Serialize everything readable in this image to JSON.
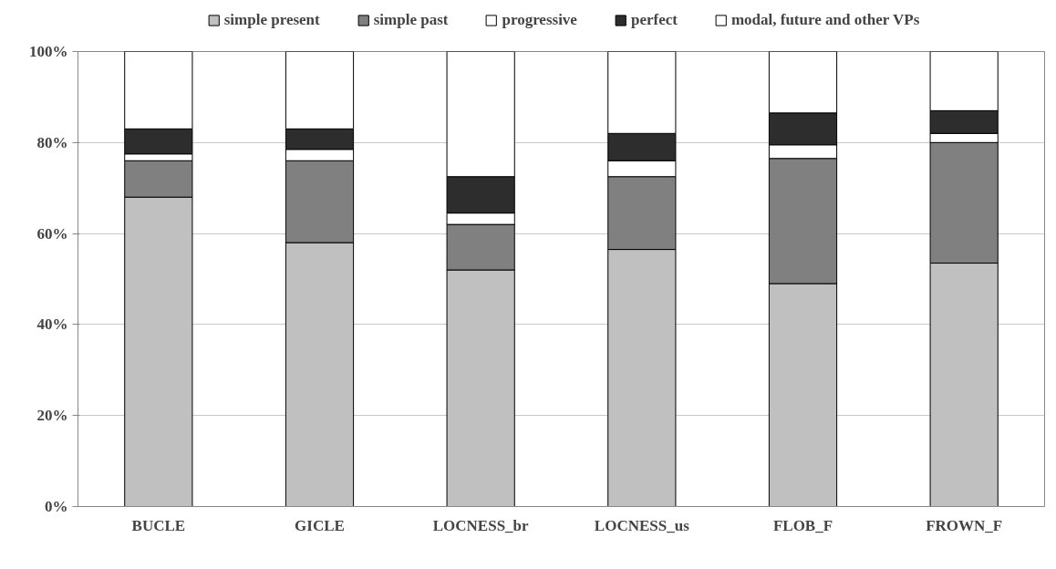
{
  "chart_data": {
    "type": "bar",
    "stacked": true,
    "categories": [
      "BUCLE",
      "GICLE",
      "LOCNESS_br",
      "LOCNESS_us",
      "FLOB_F",
      "FROWN_F"
    ],
    "series": [
      {
        "name": "simple present",
        "color": "#c0c0c0",
        "values": [
          68,
          58,
          52,
          56.5,
          49,
          53.5
        ]
      },
      {
        "name": "simple past",
        "color": "#808080",
        "values": [
          8,
          18,
          10,
          16,
          27.5,
          26.5
        ]
      },
      {
        "name": "progressive",
        "color": "#ffffff",
        "values": [
          1.5,
          2.5,
          2.5,
          3.5,
          3,
          2
        ]
      },
      {
        "name": "perfect",
        "color": "#2d2d2d",
        "values": [
          5.5,
          4.5,
          8,
          6,
          7,
          5
        ]
      },
      {
        "name": "modal, future and other VPs",
        "color": "#ffffff",
        "values": [
          17,
          17,
          27.5,
          18,
          13.5,
          13
        ]
      }
    ],
    "ylim": [
      0,
      100
    ],
    "yticks": [
      {
        "value": 0,
        "label": "0%"
      },
      {
        "value": 20,
        "label": "20%"
      },
      {
        "value": 40,
        "label": "40%"
      },
      {
        "value": 60,
        "label": "60%"
      },
      {
        "value": 80,
        "label": "80%"
      },
      {
        "value": 100,
        "label": "100%"
      }
    ],
    "grid": "y",
    "legend": "top"
  }
}
